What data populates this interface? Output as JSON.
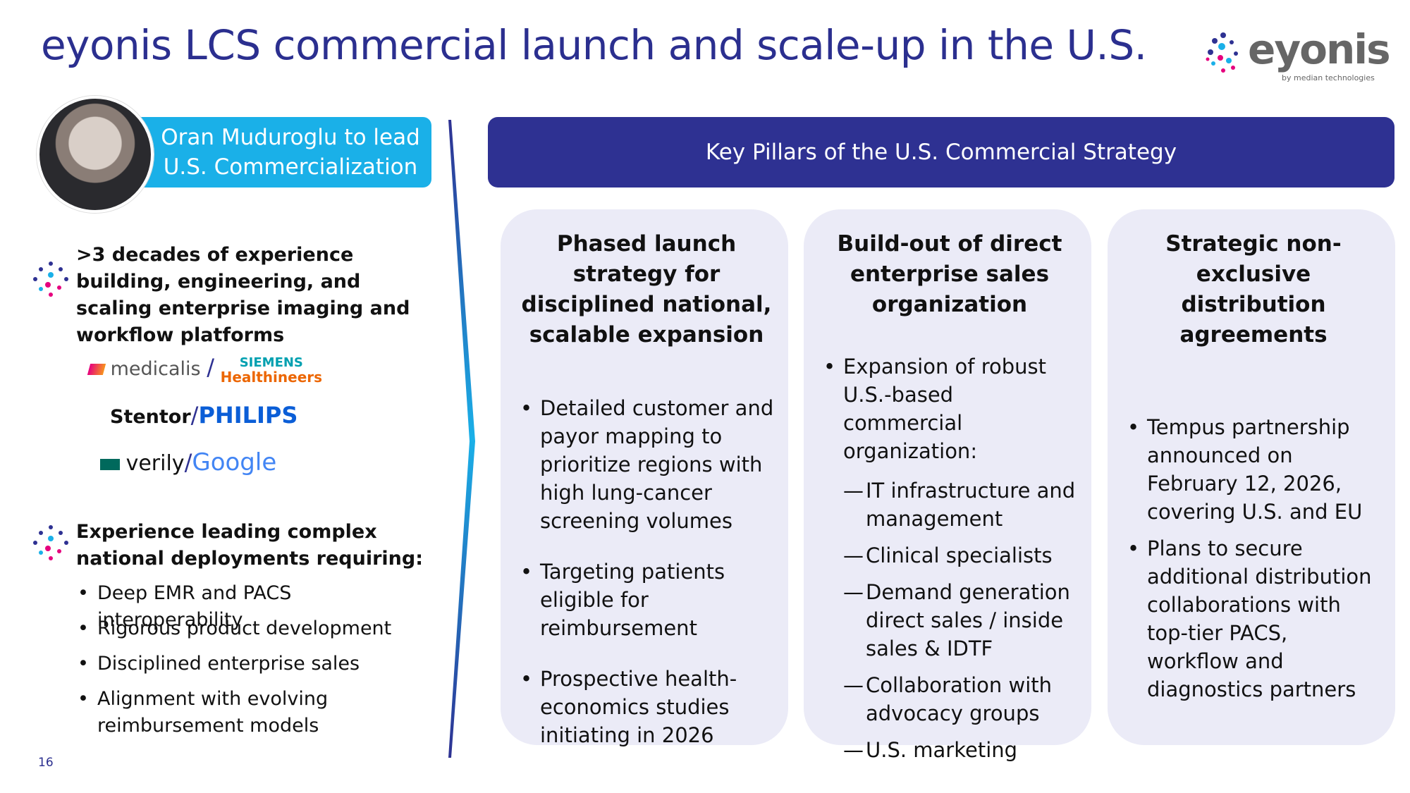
{
  "header": {
    "title": "eyonis LCS commercial launch and scale-up in the U.S.",
    "logo": "eyonis",
    "logo_sub": "by median technologies"
  },
  "left": {
    "caption": "Oran Muduroglu to lead U.S. Commercialization",
    "experience": ">3 decades of experience building, engineering, and scaling enterprise imaging and workflow platforms",
    "logos": [
      [
        "medicalis",
        "/",
        "SIEMENS",
        "Healthineers"
      ],
      [
        "Stentor",
        "/",
        "PHILIPS"
      ],
      [
        "verily",
        "/",
        "Google"
      ]
    ],
    "deployments": "Experience leading complex national deployments requiring:",
    "bullets": [
      "Deep EMR and PACS interoperability",
      "Rigorous product development",
      "Disciplined enterprise sales",
      "Alignment with evolving reimbursement models"
    ]
  },
  "pillars": {
    "title": "Key Pillars of the U.S. Commercial Strategy",
    "columns": [
      {
        "heading": "Phased launch strategy for disciplined national, scalable expansion",
        "items": [
          "Detailed customer and payor mapping to prioritize regions with high lung-cancer screening volumes",
          "Targeting patients eligible for reimbursement",
          "Prospective health-economics studies initiating in 2026"
        ]
      },
      {
        "heading": "Build-out of direct enterprise sales organization",
        "items": [
          "Expansion of robust U.S.-based commercial organization:"
        ],
        "subitems": [
          "IT infrastructure and management",
          "Clinical specialists",
          "Demand generation direct sales / inside sales & IDTF",
          "Collaboration with advocacy groups",
          "U.S. marketing"
        ]
      },
      {
        "heading": "Strategic non-exclusive distribution agreements",
        "items": [
          "Tempus partnership announced on February 12, 2026, covering U.S. and EU",
          "Plans to secure additional distribution collaborations with top-tier PACS, workflow and diagnostics partners"
        ]
      }
    ]
  },
  "footer": {
    "page": "16"
  }
}
